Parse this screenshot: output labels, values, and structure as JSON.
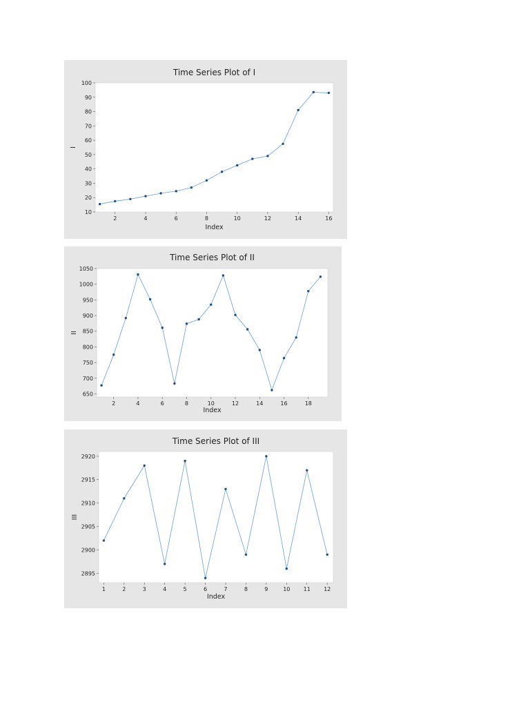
{
  "chart_data": [
    {
      "type": "line",
      "title": "Time Series Plot of I",
      "xlabel": "Index",
      "ylabel": "I",
      "xlim": [
        0.7,
        16.3
      ],
      "ylim": [
        10,
        100
      ],
      "xticks": [
        2,
        4,
        6,
        8,
        10,
        12,
        14,
        16
      ],
      "yticks": [
        10,
        20,
        30,
        40,
        50,
        60,
        70,
        80,
        90,
        100
      ],
      "grid": false,
      "color": "#6a9fd4",
      "marker_color": "#1f4e8c",
      "x": [
        1,
        2,
        3,
        4,
        5,
        6,
        7,
        8,
        9,
        10,
        11,
        12,
        13,
        14,
        15,
        16
      ],
      "y": [
        15.5,
        17.5,
        19,
        21,
        23,
        24.5,
        27,
        32,
        38,
        42.5,
        47,
        49,
        57.5,
        81,
        93.5,
        93
      ]
    },
    {
      "type": "line",
      "title": "Time Series Plot of II",
      "xlabel": "Index",
      "ylabel": "II",
      "xlim": [
        0.6,
        19.6
      ],
      "ylim": [
        640,
        1050
      ],
      "xticks": [
        2,
        4,
        6,
        8,
        10,
        12,
        14,
        16,
        18
      ],
      "yticks": [
        650,
        700,
        750,
        800,
        850,
        900,
        950,
        1000,
        1050
      ],
      "grid": false,
      "color": "#6a9fd4",
      "marker_color": "#1f4e8c",
      "x": [
        1,
        2,
        3,
        4,
        5,
        6,
        7,
        8,
        9,
        10,
        11,
        12,
        13,
        14,
        15,
        16,
        17,
        18,
        19
      ],
      "y": [
        677,
        775,
        892,
        1031,
        952,
        861,
        683,
        874,
        888,
        935,
        1028,
        902,
        856,
        790,
        662,
        764,
        830,
        978,
        1024
      ]
    },
    {
      "type": "line",
      "title": "Time Series Plot of III",
      "xlabel": "Index",
      "ylabel": "III",
      "xlim": [
        0.75,
        12.3
      ],
      "ylim": [
        2893,
        2921
      ],
      "xticks": [
        1,
        2,
        3,
        4,
        5,
        6,
        7,
        8,
        9,
        10,
        11,
        12
      ],
      "yticks": [
        2895,
        2900,
        2905,
        2910,
        2915,
        2920
      ],
      "grid": false,
      "color": "#6a9fd4",
      "marker_color": "#1f4e8c",
      "x": [
        1,
        2,
        3,
        4,
        5,
        6,
        7,
        8,
        9,
        10,
        11,
        12
      ],
      "y": [
        2902,
        2911,
        2918,
        2897,
        2919,
        2894,
        2913,
        2899,
        2920,
        2896,
        2917,
        2899
      ]
    }
  ]
}
